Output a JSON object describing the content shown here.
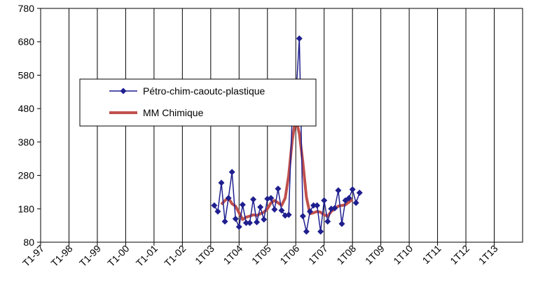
{
  "chart_data": {
    "type": "line",
    "x_categories": [
      "T1-97",
      "T1-98",
      "T1-99",
      "T1-00",
      "T1-01",
      "T1-02",
      "1T03",
      "1T04",
      "1T05",
      "1T06",
      "1T07",
      "1T08",
      "1T09",
      "1T10",
      "1T11",
      "1T12",
      "1T13"
    ],
    "ylim": [
      80,
      780
    ],
    "y_ticks": [
      "80",
      "180",
      "280",
      "380",
      "480",
      "580",
      "680",
      "780"
    ],
    "grid": "vertical",
    "legend_position": "left-middle",
    "series": [
      {
        "name": "Pétro-chim-caoutc-plastique",
        "color": "#1f1f8f",
        "marker": "diamond",
        "values": [
          [
            24.0,
            190
          ],
          [
            24.5,
            172
          ],
          [
            25.0,
            258
          ],
          [
            25.5,
            142
          ],
          [
            26.0,
            212
          ],
          [
            26.5,
            290
          ],
          [
            27.0,
            150
          ],
          [
            27.5,
            126
          ],
          [
            28.0,
            192
          ],
          [
            28.5,
            138
          ],
          [
            29.0,
            138
          ],
          [
            29.5,
            208
          ],
          [
            30.0,
            140
          ],
          [
            30.5,
            185
          ],
          [
            31.0,
            148
          ],
          [
            31.5,
            210
          ],
          [
            32.0,
            212
          ],
          [
            32.5,
            178
          ],
          [
            33.0,
            240
          ],
          [
            33.5,
            175
          ],
          [
            34.0,
            160
          ],
          [
            34.5,
            162
          ],
          [
            35.0,
            465
          ],
          [
            35.5,
            505
          ],
          [
            36.0,
            690
          ],
          [
            36.5,
            158
          ],
          [
            37.0,
            112
          ],
          [
            37.5,
            172
          ],
          [
            38.0,
            190
          ],
          [
            38.5,
            190
          ],
          [
            39.0,
            112
          ],
          [
            39.5,
            205
          ],
          [
            40.0,
            142
          ],
          [
            40.5,
            180
          ],
          [
            41.0,
            182
          ],
          [
            41.5,
            235
          ],
          [
            42.0,
            135
          ],
          [
            42.5,
            205
          ],
          [
            43.0,
            212
          ],
          [
            43.5,
            238
          ],
          [
            44.0,
            198
          ],
          [
            44.5,
            228
          ]
        ]
      },
      {
        "name": "MM Chimique",
        "color": "#c0504d",
        "marker": "none",
        "values": [
          [
            25.0,
            193
          ],
          [
            25.5,
            205
          ],
          [
            26.0,
            212
          ],
          [
            26.5,
            195
          ],
          [
            27.0,
            188
          ],
          [
            27.5,
            168
          ],
          [
            28.0,
            148
          ],
          [
            28.5,
            155
          ],
          [
            29.0,
            158
          ],
          [
            29.5,
            162
          ],
          [
            30.0,
            160
          ],
          [
            30.5,
            165
          ],
          [
            31.0,
            170
          ],
          [
            31.5,
            180
          ],
          [
            32.0,
            198
          ],
          [
            32.5,
            205
          ],
          [
            33.0,
            198
          ],
          [
            33.5,
            190
          ],
          [
            34.0,
            212
          ],
          [
            34.5,
            280
          ],
          [
            35.0,
            385
          ],
          [
            35.5,
            452
          ],
          [
            36.0,
            405
          ],
          [
            36.5,
            318
          ],
          [
            37.0,
            215
          ],
          [
            37.5,
            165
          ],
          [
            38.0,
            168
          ],
          [
            38.5,
            172
          ],
          [
            39.0,
            170
          ],
          [
            39.5,
            162
          ],
          [
            40.0,
            158
          ],
          [
            40.5,
            172
          ],
          [
            41.0,
            180
          ],
          [
            41.5,
            188
          ],
          [
            42.0,
            190
          ],
          [
            42.5,
            192
          ],
          [
            43.0,
            200
          ],
          [
            43.5,
            208
          ]
        ]
      }
    ]
  }
}
